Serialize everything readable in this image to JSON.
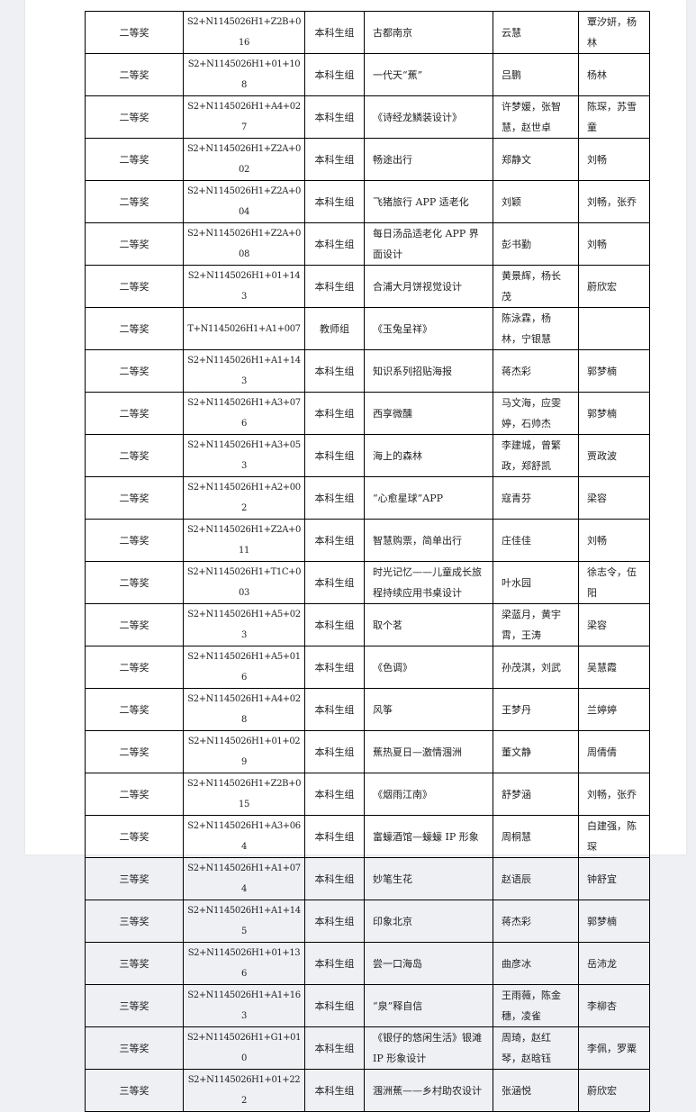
{
  "table": {
    "rows": [
      {
        "award": "二等奖",
        "code": "S2+N1145026H1+Z2B+016",
        "group": "本科生组",
        "title": "古都南京",
        "authors": "云慧",
        "advisor": "覃汐妍，杨林"
      },
      {
        "award": "二等奖",
        "code": "S2+N1145026H1+01+108",
        "group": "本科生组",
        "title": "一代天“蕉”",
        "authors": "吕鹏",
        "advisor": "杨林"
      },
      {
        "award": "二等奖",
        "code": "S2+N1145026H1+A4+027",
        "group": "本科生组",
        "title": "《诗经龙鳞装设计》",
        "authors": "许梦媛，张智慧，赵世卓",
        "advisor": "陈琛，苏雪童"
      },
      {
        "award": "二等奖",
        "code": "S2+N1145026H1+Z2A+002",
        "group": "本科生组",
        "title": "畅途出行",
        "authors": "郑静文",
        "advisor": "刘畅"
      },
      {
        "award": "二等奖",
        "code": "S2+N1145026H1+Z2A+004",
        "group": "本科生组",
        "title": "飞猪旅行 APP 适老化",
        "authors": "刘颖",
        "advisor": "刘畅，张乔"
      },
      {
        "award": "二等奖",
        "code": "S2+N1145026H1+Z2A+008",
        "group": "本科生组",
        "title": "每日汤品适老化 APP 界面设计",
        "authors": "彭书勤",
        "advisor": "刘畅"
      },
      {
        "award": "二等奖",
        "code": "S2+N1145026H1+01+143",
        "group": "本科生组",
        "title": "合浦大月饼视觉设计",
        "authors": "黄景辉，杨长茂",
        "advisor": "蔚欣宏"
      },
      {
        "award": "二等奖",
        "code": "T+N1145026H1+A1+007",
        "group": "教师组",
        "title": "《玉兔呈祥》",
        "authors": "陈泳霖，杨林，宁银慧",
        "advisor": ""
      },
      {
        "award": "二等奖",
        "code": "S2+N1145026H1+A1+143",
        "group": "本科生组",
        "title": "知识系列招贴海报",
        "authors": "蒋杰彩",
        "advisor": "郭梦楠"
      },
      {
        "award": "二等奖",
        "code": "S2+N1145026H1+A3+076",
        "group": "本科生组",
        "title": "西享微醺",
        "authors": "马文海，应雯婷，石帅杰",
        "advisor": "郭梦楠"
      },
      {
        "award": "二等奖",
        "code": "S2+N1145026H1+A3+053",
        "group": "本科生组",
        "title": "海上的森林",
        "authors": "李建城，曾繁政，郑舒凯",
        "advisor": "贾政波"
      },
      {
        "award": "二等奖",
        "code": "S2+N1145026H1+A2+002",
        "group": "本科生组",
        "title": "“心愈星球”APP",
        "authors": "寇青芬",
        "advisor": "梁容"
      },
      {
        "award": "二等奖",
        "code": "S2+N1145026H1+Z2A+011",
        "group": "本科生组",
        "title": "智慧购票，简单出行",
        "authors": "庄佳佳",
        "advisor": "刘畅"
      },
      {
        "award": "二等奖",
        "code": "S2+N1145026H1+T1C+003",
        "group": "本科生组",
        "title": "时光记忆——儿童成长旅程持续应用书桌设计",
        "authors": "叶水园",
        "advisor": "徐志令，伍阳"
      },
      {
        "award": "二等奖",
        "code": "S2+N1145026H1+A5+023",
        "group": "本科生组",
        "title": "取个茗",
        "authors": "梁蓝月，黄宇霄，王涛",
        "advisor": "梁容"
      },
      {
        "award": "二等奖",
        "code": "S2+N1145026H1+A5+016",
        "group": "本科生组",
        "title": "《色调》",
        "authors": "孙茂淇，刘武",
        "advisor": "吴慧霞"
      },
      {
        "award": "二等奖",
        "code": "S2+N1145026H1+A4+028",
        "group": "本科生组",
        "title": "风筝",
        "authors": "王梦丹",
        "advisor": "兰婷婷"
      },
      {
        "award": "二等奖",
        "code": "S2+N1145026H1+01+029",
        "group": "本科生组",
        "title": "蕉热夏日—激情涠洲",
        "authors": "董文静",
        "advisor": "周倩倩"
      },
      {
        "award": "二等奖",
        "code": "S2+N1145026H1+Z2B+015",
        "group": "本科生组",
        "title": "《烟雨江南》",
        "authors": "舒梦涵",
        "advisor": "刘畅，张乔"
      },
      {
        "award": "二等奖",
        "code": "S2+N1145026H1+A3+064",
        "group": "本科生组",
        "title": "富蠔酒馆—蠔蠔 IP 形象",
        "authors": "周桐慧",
        "advisor": "白建强，陈琛"
      },
      {
        "award": "三等奖",
        "code": "S2+N1145026H1+A1+074",
        "group": "本科生组",
        "title": "妙笔生花",
        "authors": "赵语辰",
        "advisor": "钟舒宜"
      },
      {
        "award": "三等奖",
        "code": "S2+N1145026H1+A1+145",
        "group": "本科生组",
        "title": "印象北京",
        "authors": "蒋杰彩",
        "advisor": "郭梦楠"
      },
      {
        "award": "三等奖",
        "code": "S2+N1145026H1+01+136",
        "group": "本科生组",
        "title": "尝一口海岛",
        "authors": "曲彦冰",
        "advisor": "岳沛龙"
      },
      {
        "award": "三等奖",
        "code": "S2+N1145026H1+A1+163",
        "group": "本科生组",
        "title": "“泉”释自信",
        "authors": "王雨薇，陈金穗，凌雀",
        "advisor": "李柳杏"
      },
      {
        "award": "三等奖",
        "code": "S2+N1145026H1+G1+010",
        "group": "本科生组",
        "title": "《银仔的悠闲生活》银滩 IP 形象设计",
        "authors": "周琦，赵红琴，赵晗钰",
        "advisor": "李佩，罗粟"
      },
      {
        "award": "三等奖",
        "code": "S2+N1145026H1+01+222",
        "group": "本科生组",
        "title": "涠洲蕉——乡村助农设计",
        "authors": "张涵悦",
        "advisor": "蔚欣宏"
      }
    ]
  }
}
